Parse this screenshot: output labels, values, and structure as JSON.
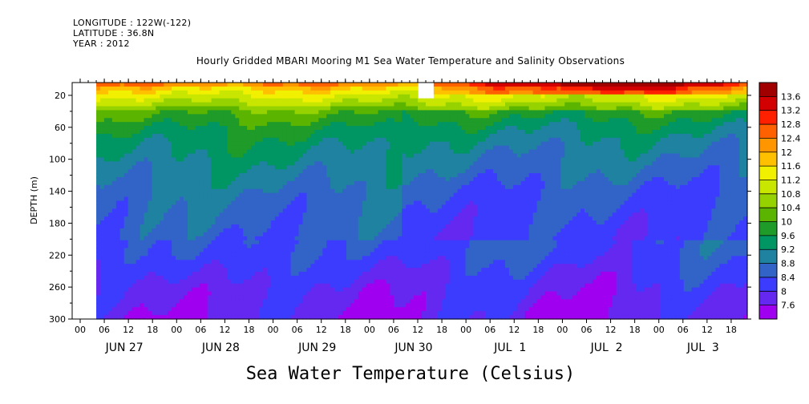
{
  "header": {
    "longitude": "LONGITUDE : 122W(-122)",
    "latitude": "LATITUDE : 36.8N",
    "year": "YEAR : 2012"
  },
  "chart_data": {
    "type": "heatmap",
    "title": "Hourly Gridded MBARI Mooring M1 Sea Water Temperature and Salinity Observations",
    "bottom_title": "Sea Water Temperature (Celsius)",
    "ylabel": "DEPTH (m)",
    "ylim": [
      300,
      4
    ],
    "y_ticks": [
      20,
      60,
      100,
      140,
      180,
      220,
      260,
      300
    ],
    "hour_ticks": [
      "00",
      "06",
      "12",
      "18",
      "00",
      "06",
      "12",
      "18",
      "00",
      "06",
      "12",
      "18",
      "00",
      "06",
      "12",
      "18",
      "00",
      "06",
      "12",
      "18",
      "00",
      "06",
      "12",
      "18",
      "00",
      "06",
      "12",
      "18"
    ],
    "day_labels": [
      "JUN 27",
      "JUN 28",
      "JUN 29",
      "JUN 30",
      "JUL  1",
      "JUL  2",
      "JUL  3"
    ],
    "data_start_hour": 4,
    "gap_hours": [
      84,
      89
    ],
    "gap_depth": [
      4,
      23
    ],
    "colorbar": {
      "ticks": [
        "13.6",
        "13.2",
        "12.8",
        "12.4",
        "12",
        "11.6",
        "11.2",
        "10.8",
        "10.4",
        "10",
        "9.6",
        "9.2",
        "8.8",
        "8.4",
        "8",
        "7.6"
      ],
      "colors": [
        "#a00000",
        "#d20000",
        "#ff2000",
        "#ff6000",
        "#ff9600",
        "#ffc000",
        "#f0f000",
        "#c8e600",
        "#96d200",
        "#5ab400",
        "#1e9b28",
        "#009664",
        "#1e82a0",
        "#3264c8",
        "#3c3cff",
        "#6428f0",
        "#a000f0"
      ]
    },
    "depth_profile": {
      "depth": [
        0,
        10,
        20,
        30,
        40,
        60,
        80,
        100,
        120,
        140,
        160,
        180,
        200,
        220,
        240,
        260,
        280,
        300
      ],
      "temperature": [
        13.2,
        11.8,
        11.2,
        10.8,
        10.2,
        9.7,
        9.4,
        9.2,
        9.0,
        8.8,
        8.7,
        8.6,
        8.5,
        8.4,
        8.2,
        8.0,
        7.9,
        7.8
      ]
    }
  }
}
